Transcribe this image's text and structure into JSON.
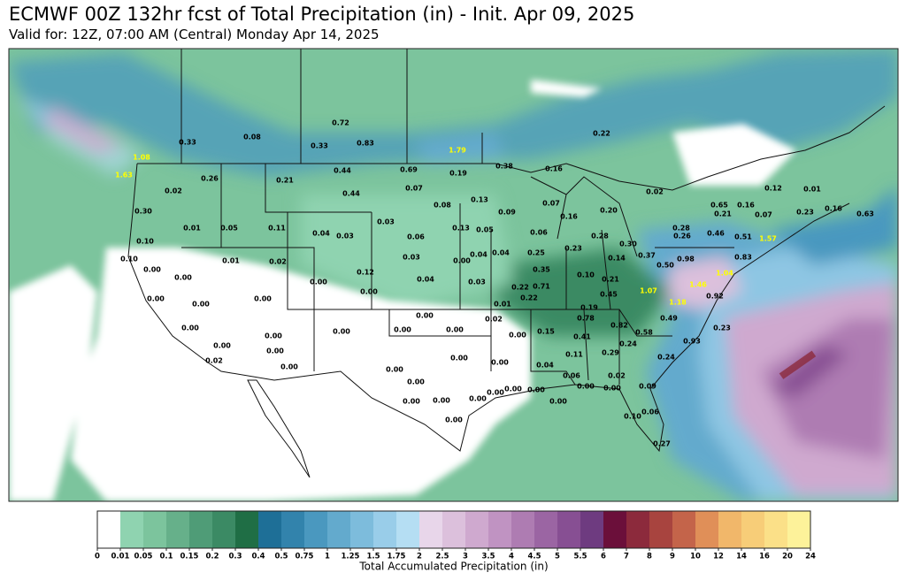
{
  "header": {
    "title": "ECMWF 00Z 132hr fcst of Total Precipitation (in) - Init. Apr 09, 2025",
    "subtitle": "Valid for: 12Z, 07:00 AM (Central) Monday Apr 14, 2025"
  },
  "map": {
    "station_values": [
      "0.33",
      "0.08",
      "0.72",
      "0.33",
      "0.83",
      "1.79",
      "0.22",
      "1.08",
      "1.63",
      "0.26",
      "0.21",
      "0.44",
      "0.69",
      "0.19",
      "0.38",
      "0.16",
      "0.02",
      "0.44",
      "0.07",
      "0.02",
      "0.12",
      "0.01",
      "0.30",
      "0.08",
      "0.13",
      "0.07",
      "0.09",
      "0.20",
      "0.16",
      "0.65",
      "0.16",
      "0.21",
      "0.07",
      "0.23",
      "0.16",
      "0.63",
      "0.01",
      "0.05",
      "0.11",
      "0.04",
      "0.03",
      "0.03",
      "0.13",
      "0.05",
      "0.06",
      "0.28",
      "0.30",
      "0.28",
      "0.26",
      "0.46",
      "0.51",
      "1.57",
      "0.10",
      "0.06",
      "0.10",
      "0.01",
      "0.02",
      "0.03",
      "0.00",
      "0.04",
      "0.04",
      "0.25",
      "0.23",
      "0.14",
      "0.37",
      "0.50",
      "0.98",
      "0.83",
      "0.00",
      "0.00",
      "0.12",
      "0.04",
      "0.03",
      "0.35",
      "0.10",
      "0.21",
      "1.04",
      "0.00",
      "0.00",
      "0.22",
      "0.71",
      "0.22",
      "1.07",
      "1.46",
      "0.45",
      "0.00",
      "0.00",
      "0.00",
      "0.19",
      "1.18",
      "0.92",
      "0.00",
      "0.02",
      "0.01",
      "0.78",
      "0.82",
      "0.49",
      "0.00",
      "0.00",
      "0.00",
      "0.00",
      "0.00",
      "0.00",
      "0.15",
      "0.41",
      "0.58",
      "0.24",
      "0.93",
      "0.23",
      "0.00",
      "0.00",
      "0.11",
      "0.29",
      "0.02",
      "0.00",
      "0.00",
      "0.00",
      "0.04",
      "0.24",
      "0.00",
      "0.00",
      "0.06",
      "0.02",
      "0.00",
      "0.00",
      "0.00",
      "0.00",
      "0.00",
      "0.09",
      "0.00",
      "0.00",
      "0.00",
      "0.00",
      "0.10",
      "0.06",
      "0.00",
      "0.27"
    ]
  },
  "colorbar": {
    "label": "Total Accumulated Precipitation (in)",
    "ticks": [
      0,
      0.01,
      0.05,
      0.1,
      0.15,
      0.2,
      0.3,
      0.4,
      0.5,
      0.75,
      1,
      1.25,
      1.5,
      1.75,
      2,
      2.5,
      3,
      3.5,
      4,
      4.5,
      5,
      5.5,
      6,
      7,
      8,
      9,
      10,
      12,
      14,
      16,
      20,
      24
    ],
    "colors": [
      "#ffffff",
      "#8fd3b0",
      "#7cc49d",
      "#66b08a",
      "#4f9c77",
      "#3b8a64",
      "#1f6e45",
      "#1e6f97",
      "#3283ac",
      "#4a98bf",
      "#63aacd",
      "#7dbcdc",
      "#99cde9",
      "#b5def3",
      "#e8d6ea",
      "#dcc0dc",
      "#cfa9cf",
      "#c093c2",
      "#ae7cb2",
      "#9b65a3",
      "#874f93",
      "#6e3b80",
      "#6b0f3a",
      "#8c2a3c",
      "#a8443f",
      "#c4644a",
      "#e08f58",
      "#f1b76a",
      "#f7cd78",
      "#fbe088",
      "#fdf29a"
    ]
  }
}
